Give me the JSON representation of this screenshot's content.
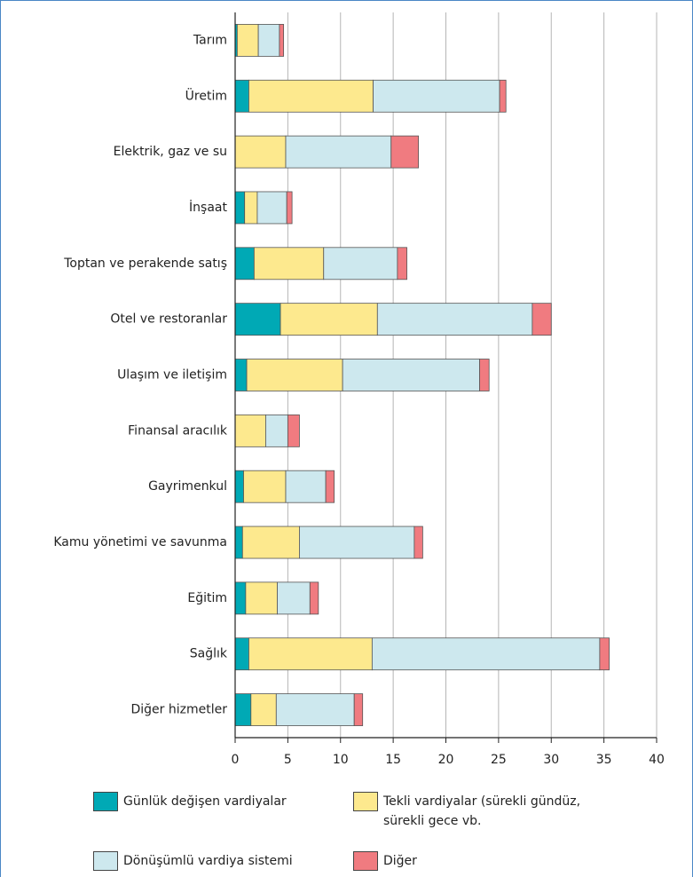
{
  "chart_data": {
    "type": "stacked-barh",
    "categories": [
      "Tarım",
      "Üretim",
      "Elektrik, gaz ve su",
      "İnşaat",
      "Toptan ve perakende satış",
      "Otel ve restoranlar",
      "Ulaşım ve iletişim",
      "Finansal aracılık",
      "Gayrimenkul",
      "Kamu yönetimi ve savunma",
      "Eğitim",
      "Sağlık",
      "Diğer hizmetler"
    ],
    "series": [
      {
        "name": "Günlük değişen vardiyalar",
        "color": "#00a9b5",
        "values": [
          0.2,
          1.3,
          0,
          0.9,
          1.8,
          4.3,
          1.1,
          0,
          0.8,
          0.7,
          1.0,
          1.3,
          1.5
        ]
      },
      {
        "name": "Tekli vardiyalar (sürekli gündüz, sürekli gece vb.",
        "color": "#fde98e",
        "values": [
          2.0,
          11.8,
          4.8,
          1.2,
          6.6,
          9.2,
          9.1,
          2.9,
          4.0,
          5.4,
          3.0,
          11.7,
          2.4
        ]
      },
      {
        "name": "Dönüşümlü vardiya sistemi",
        "color": "#cde8ee",
        "values": [
          2.0,
          12.0,
          10.0,
          2.8,
          7.0,
          14.7,
          13.0,
          2.1,
          3.8,
          10.9,
          3.1,
          21.6,
          7.4
        ]
      },
      {
        "name": "Diğer",
        "color": "#f07b80",
        "values": [
          0.4,
          0.6,
          2.6,
          0.5,
          0.9,
          1.8,
          0.9,
          1.1,
          0.8,
          0.8,
          0.8,
          0.9,
          0.8
        ]
      }
    ],
    "xlim": [
      0,
      40
    ],
    "xticks": [
      0,
      5,
      10,
      15,
      20,
      25,
      30,
      35,
      40
    ],
    "grid": true
  }
}
